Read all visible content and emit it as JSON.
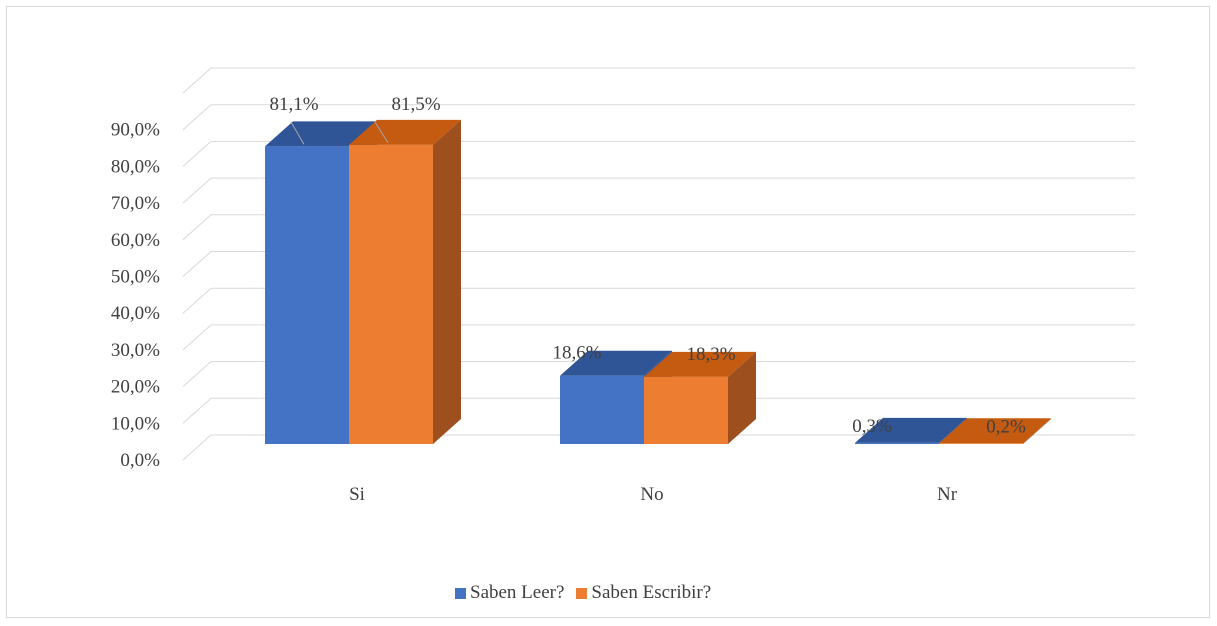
{
  "chart_data": {
    "type": "bar",
    "categories": [
      "Si",
      "No",
      "Nr"
    ],
    "series": [
      {
        "name": "Saben Leer?",
        "values": [
          81.1,
          18.6,
          0.3
        ],
        "labels": [
          "81,1%",
          "18,6%",
          "0,3%"
        ]
      },
      {
        "name": "Saben Escribir?",
        "values": [
          81.5,
          18.3,
          0.2
        ],
        "labels": [
          "81,5%",
          "18,3%",
          "0,2%"
        ]
      }
    ],
    "y_ticks": [
      "0,0%",
      "10,0%",
      "20,0%",
      "30,0%",
      "40,0%",
      "50,0%",
      "60,0%",
      "70,0%",
      "80,0%",
      "90,0%"
    ],
    "ylim": [
      0,
      100
    ],
    "grid": true,
    "legend_position": "bottom",
    "three_d": true
  },
  "colors": {
    "series_front": [
      "#4472c4",
      "#ed7d31"
    ],
    "series_top": [
      "#2f5597",
      "#c55a11"
    ],
    "series_side": [
      "#2f5597",
      "#9e4f1e"
    ],
    "grid": "#d9d9d9",
    "text": "#404040"
  }
}
